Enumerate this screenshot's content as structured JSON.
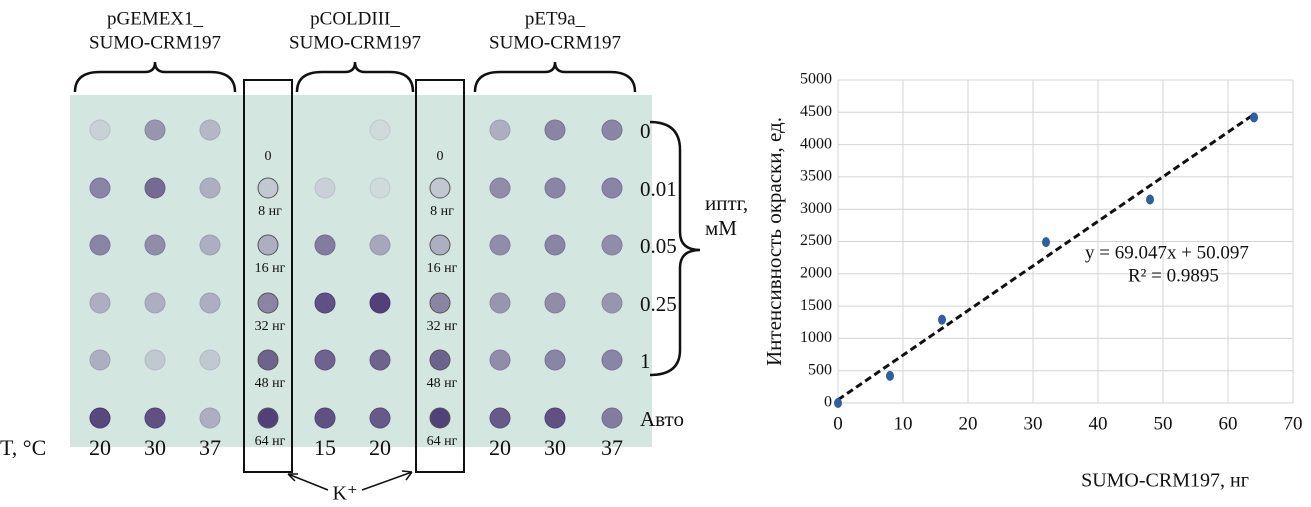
{
  "blot": {
    "groups": [
      {
        "label": [
          "pGEMEX1_",
          "SUMO-CRM197"
        ],
        "temps": [
          20,
          30,
          37
        ]
      },
      {
        "label": [
          "pCOLDIII_",
          "SUMO-CRM197"
        ],
        "temps": [
          15,
          20
        ]
      },
      {
        "label": [
          "pET9a_",
          "SUMO-CRM197"
        ],
        "temps": [
          20,
          30,
          37
        ]
      }
    ],
    "standard_labels": [
      "0",
      "8 нг",
      "16 нг",
      "32 нг",
      "48 нг",
      "64 нг"
    ],
    "row_labels": [
      0,
      0.01,
      0.05,
      0.25,
      1,
      "Авто"
    ],
    "iptg_label": [
      "иптг,",
      "мМ"
    ],
    "temp_label": "T, °C",
    "control_label": "K⁺"
  },
  "chart_data": {
    "type": "scatter",
    "x": [
      0,
      8,
      16,
      32,
      48,
      64
    ],
    "values": [
      0,
      420,
      1290,
      2490,
      3150,
      4420
    ],
    "color": "#2f5f9e",
    "xlabel": "SUMO-CRM197, нг",
    "ylabel": "Интенсивность окраски, ед.",
    "xlim": [
      0,
      70
    ],
    "ylim": [
      0,
      5000
    ],
    "xticks": [
      0,
      10,
      20,
      30,
      40,
      50,
      60,
      70
    ],
    "yticks": [
      0,
      500,
      1000,
      1500,
      2000,
      2500,
      3000,
      3500,
      4000,
      4500,
      5000
    ],
    "grid": true,
    "trendline": {
      "slope": 69.047,
      "intercept": 50.097,
      "label": "y = 69.047x + 50.097",
      "r2_label": "R² = 0.9895"
    }
  }
}
